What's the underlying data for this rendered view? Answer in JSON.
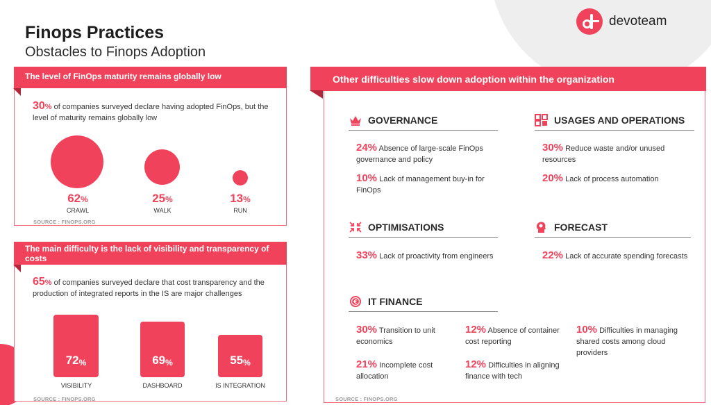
{
  "brand": {
    "name": "devoteam"
  },
  "header": {
    "title": "Finops Practices",
    "subtitle": "Obstacles to Finops Adoption"
  },
  "colors": {
    "accent": "#f0425a",
    "accent_dark": "#b3263b"
  },
  "maturity": {
    "heading": "The level of FinOps maturity remains globally low",
    "lead_pct": "30",
    "lead_sign": "%",
    "lead_text": " of companies surveyed declare having adopted FinOps, but the level of maturity remains globally low",
    "stats": [
      {
        "value": "62",
        "unit": "%",
        "label": "CRAWL",
        "share": 62
      },
      {
        "value": "25",
        "unit": "%",
        "label": "WALK",
        "share": 25
      },
      {
        "value": "13",
        "unit": "%",
        "label": "RUN",
        "share": 13
      }
    ],
    "source": "SOURCE : FINOPS.ORG"
  },
  "visibility": {
    "heading": "The main difficulty is the lack of visibility and transparency of costs",
    "lead_pct": "65",
    "lead_sign": "%",
    "lead_text": " of companies surveyed declare that cost transparency and the production of integrated reports in the IS are major challenges",
    "bars": [
      {
        "value": "72",
        "unit": "%",
        "label": "VISIBILITY",
        "share": 72
      },
      {
        "value": "69",
        "unit": "%",
        "label": "DASHBOARD",
        "share": 69
      },
      {
        "value": "55",
        "unit": "%",
        "label": "IS INTEGRATION",
        "share": 55
      }
    ],
    "source": "SOURCE : FINOPS.ORG"
  },
  "difficulties": {
    "heading": "Other difficulties slow down adoption within the organization",
    "source": "SOURCE : FINOPS.ORG",
    "governance": {
      "title": "GOVERNANCE",
      "icon": "crown-icon",
      "items": [
        {
          "pct": "24%",
          "text": " Absence of large-scale FinOps governance and policy"
        },
        {
          "pct": "10%",
          "text": " Lack of management buy-in for FinOps"
        }
      ]
    },
    "usages": {
      "title": "USAGES AND OPERATIONS",
      "icon": "grid-icon",
      "items": [
        {
          "pct": "30%",
          "text": " Reduce waste and/or unused resources"
        },
        {
          "pct": "20%",
          "text": " Lack of process automation"
        }
      ]
    },
    "optimisations": {
      "title": "OPTIMISATIONS",
      "icon": "compress-arrows-icon",
      "items": [
        {
          "pct": "33%",
          "text": " Lack of proactivity from engineers"
        }
      ]
    },
    "forecast": {
      "title": "FORECAST",
      "icon": "lightbulb-head-icon",
      "items": [
        {
          "pct": "22%",
          "text": " Lack of accurate spending forecasts"
        }
      ]
    },
    "itfinance": {
      "title": "IT FINANCE",
      "icon": "euro-coin-icon",
      "items": [
        {
          "pct": "30%",
          "text": " Transition to unit economics"
        },
        {
          "pct": "21%",
          "text": " Incomplete cost allocation"
        },
        {
          "pct": "12%",
          "text": " Absence of container cost reporting"
        },
        {
          "pct": "12%",
          "text": " Difficulties in aligning finance with tech"
        },
        {
          "pct": "10%",
          "text": " Difficulties in managing shared costs among cloud providers"
        }
      ]
    }
  }
}
